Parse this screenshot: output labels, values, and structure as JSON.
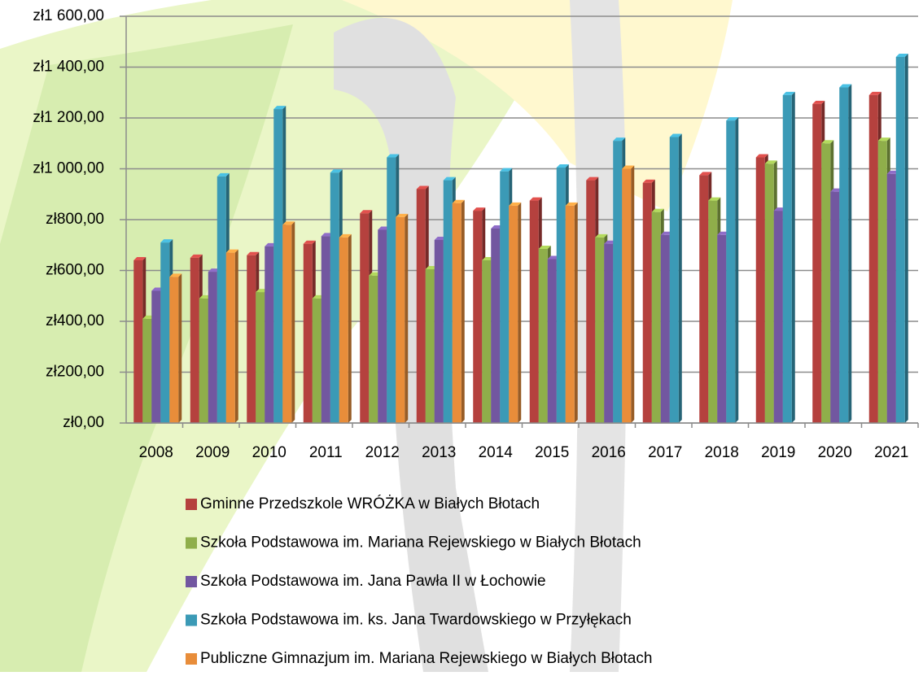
{
  "chart_data": {
    "type": "bar",
    "categories": [
      "2008",
      "2009",
      "2010",
      "2011",
      "2012",
      "2013",
      "2014",
      "2015",
      "2016",
      "2017",
      "2018",
      "2019",
      "2020",
      "2021"
    ],
    "series": [
      {
        "name": "Gminne Przedszkole WRÓŻKA w Białych Błotach",
        "color": "#b5413e",
        "values": [
          640,
          650,
          660,
          705,
          825,
          920,
          835,
          875,
          955,
          945,
          975,
          1045,
          1255,
          1290
        ]
      },
      {
        "name": "Szkoła Podstawowa im. Mariana Rejewskiego w Białych Błotach",
        "color": "#8fae4a",
        "values": [
          410,
          490,
          515,
          490,
          580,
          605,
          640,
          685,
          730,
          830,
          875,
          1020,
          1100,
          1110
        ]
      },
      {
        "name": "Szkoła Podstawowa im. Jana Pawła II w Łochowie",
        "color": "#7257a0",
        "values": [
          520,
          595,
          695,
          735,
          760,
          720,
          765,
          645,
          705,
          740,
          740,
          835,
          910,
          980
        ]
      },
      {
        "name": "Szkoła Podstawowa im. ks. Jana Twardowskiego w Przyłękach",
        "color": "#3b9ab6",
        "values": [
          710,
          970,
          1235,
          985,
          1045,
          955,
          990,
          1005,
          1110,
          1125,
          1190,
          1290,
          1320,
          1440
        ]
      },
      {
        "name": "Publiczne Gimnazjum im. Mariana Rejewskiego w Białych Błotach",
        "color": "#e88d3a",
        "values": [
          575,
          670,
          780,
          730,
          810,
          865,
          855,
          855,
          1000,
          null,
          null,
          null,
          null,
          null
        ]
      }
    ],
    "ylim": [
      0,
      1600
    ],
    "yticks": [
      {
        "value": 0,
        "label": "zł0,00"
      },
      {
        "value": 200,
        "label": "zł200,00"
      },
      {
        "value": 400,
        "label": "zł400,00"
      },
      {
        "value": 600,
        "label": "zł600,00"
      },
      {
        "value": 800,
        "label": "zł800,00"
      },
      {
        "value": 1000,
        "label": "zł1 000,00"
      },
      {
        "value": 1200,
        "label": "zł1 200,00"
      },
      {
        "value": 1400,
        "label": "zł1 400,00"
      },
      {
        "value": 1600,
        "label": "zł1 600,00"
      }
    ],
    "grid": true
  }
}
